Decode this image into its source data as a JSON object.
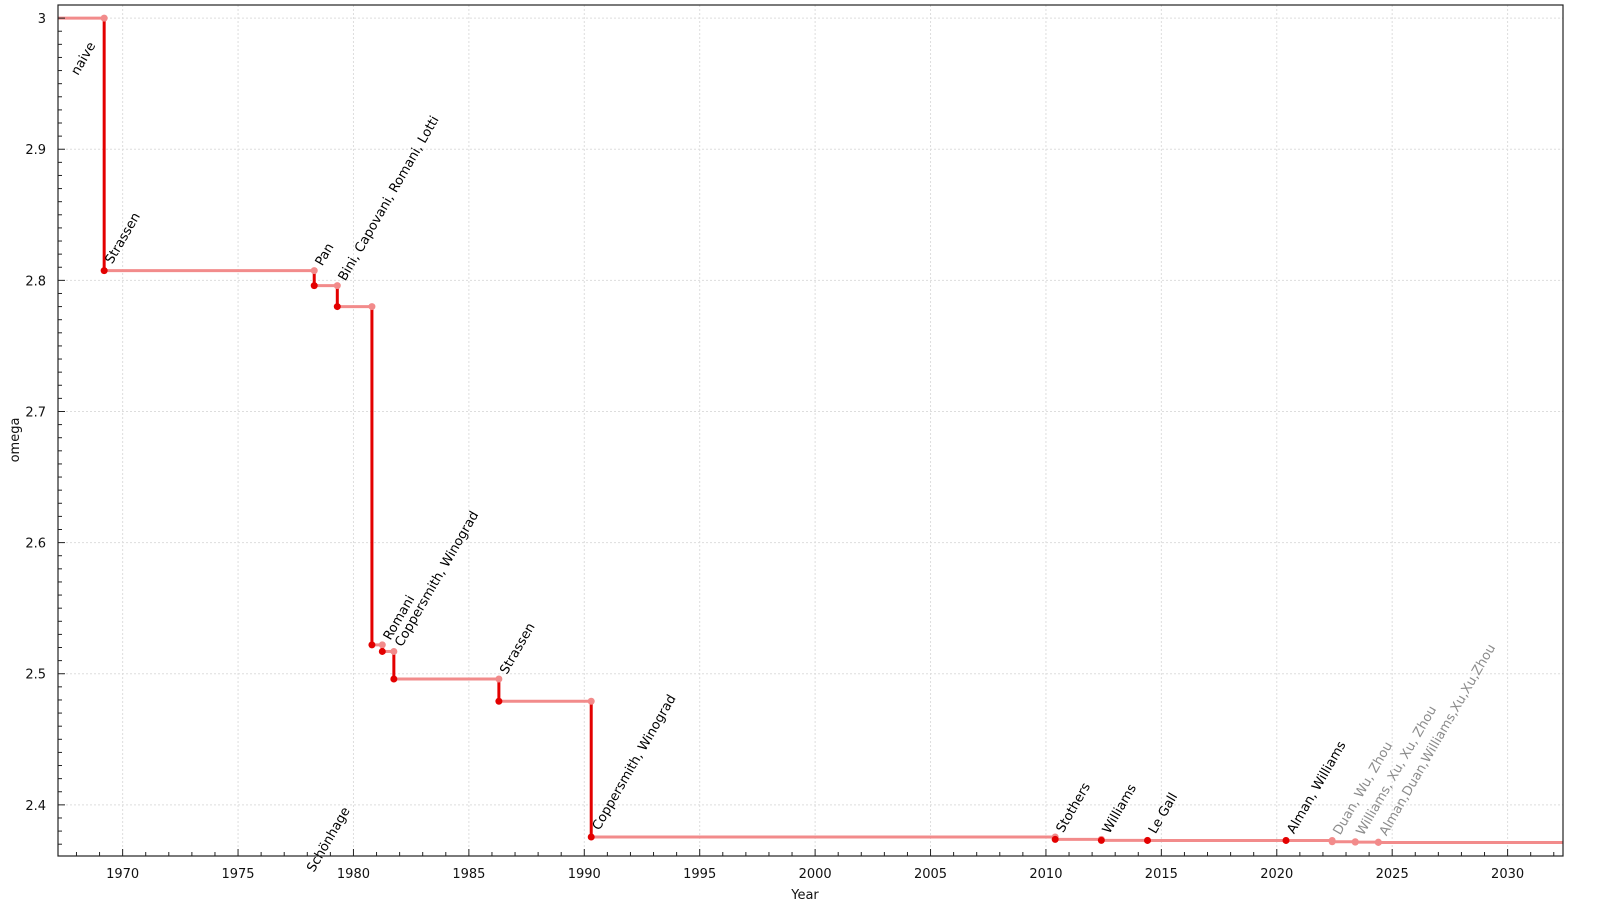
{
  "chart_data": {
    "type": "line",
    "step": true,
    "xlabel": "Year",
    "ylabel": "omega",
    "xlim": [
      1967.2,
      2032.4
    ],
    "ylim": [
      2.361,
      3.01
    ],
    "xticks": [
      1970,
      1975,
      1980,
      1985,
      1990,
      1995,
      2000,
      2005,
      2010,
      2015,
      2020,
      2025,
      2030
    ],
    "yticks": [
      2.4,
      2.5,
      2.6,
      2.7,
      2.8,
      2.9,
      3
    ],
    "grid": true,
    "colors": {
      "step_horizontal": "#f28b8b",
      "step_vertical": "#e30000",
      "dot_new": "#e30000",
      "dot_old": "#f28b8b",
      "label": "#000000",
      "label_recent": "#8c8c8c"
    },
    "initial": {
      "label": "naive",
      "omega": 3
    },
    "points": [
      {
        "label": "Strassen",
        "year": 1969.2,
        "omega": 2.8074,
        "recent": false
      },
      {
        "label": "Pan",
        "year": 1978.3,
        "omega": 2.796,
        "recent": false
      },
      {
        "label": "Bini, Capovani, Romani, Lotti",
        "year": 1979.3,
        "omega": 2.78,
        "recent": false
      },
      {
        "label": "Schönhage",
        "year": 1980.8,
        "omega": 2.522,
        "recent": false
      },
      {
        "label": "Romani",
        "year": 1981.25,
        "omega": 2.517,
        "recent": false
      },
      {
        "label": "Coppersmith, Winograd",
        "year": 1981.75,
        "omega": 2.496,
        "recent": false
      },
      {
        "label": "Strassen",
        "year": 1986.3,
        "omega": 2.479,
        "recent": false
      },
      {
        "label": "Coppersmith, Winograd",
        "year": 1990.3,
        "omega": 2.3755,
        "recent": false
      },
      {
        "label": "Stothers",
        "year": 2010.4,
        "omega": 2.3737,
        "recent": false
      },
      {
        "label": "Williams",
        "year": 2012.4,
        "omega": 2.3729,
        "recent": false
      },
      {
        "label": "Le Gall",
        "year": 2014.4,
        "omega": 2.37286,
        "recent": false
      },
      {
        "label": "Alman, Williams",
        "year": 2020.4,
        "omega": 2.37286,
        "recent": false
      },
      {
        "label": "Duan, Wu, Zhou",
        "year": 2022.4,
        "omega": 2.37188,
        "recent": true
      },
      {
        "label": "Williams, Xu, Xu, Zhou",
        "year": 2023.4,
        "omega": 2.37155,
        "recent": true
      },
      {
        "label": "Alman,Duan,Williams,Xu,Xu,Zhou",
        "year": 2024.4,
        "omega": 2.37134,
        "recent": true
      }
    ]
  }
}
